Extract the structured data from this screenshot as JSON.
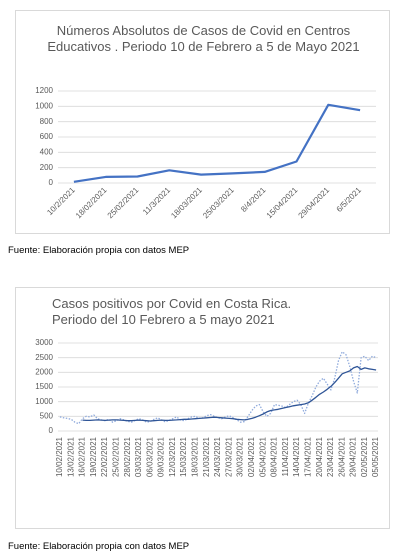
{
  "chart_data": [
    {
      "type": "line",
      "title": "Números Absolutos de Casos de Covid en Centros Educativos . Periodo 10 de Febrero a 5 de Mayo 2021",
      "categories": [
        "10/2/2021",
        "18/02/2021",
        "25/02/2021",
        "11/3/2021",
        "18/03/2021",
        "25/03/2021",
        "8/4/2021",
        "15/04/2021",
        "29/04/2021",
        "6/5/2021"
      ],
      "series": [
        {
          "color": "#4472c4",
          "values": [
            15,
            80,
            85,
            165,
            110,
            125,
            145,
            280,
            1020,
            950
          ]
        }
      ],
      "ylim": [
        0,
        1200
      ],
      "yticks": [
        0,
        200,
        400,
        600,
        800,
        1000,
        1200
      ],
      "grid": true
    },
    {
      "type": "line",
      "title": "Casos positivos por Covid en Costa Rica. Periodo del  10 Febrero a 5 mayo 2021",
      "categories": [
        "10/02/2021",
        null,
        null,
        "13/02/2021",
        null,
        null,
        "16/02/2021",
        null,
        null,
        "19/02/2021",
        null,
        null,
        "22/02/2021",
        null,
        null,
        "25/02/2021",
        null,
        null,
        "28/02/2021",
        null,
        null,
        "03/03/2021",
        null,
        null,
        "06/03/2021",
        null,
        null,
        "09/03/2021",
        null,
        null,
        "12/03/2021",
        null,
        null,
        "15/03/2021",
        null,
        null,
        "18/03/2021",
        null,
        null,
        "21/03/2021",
        null,
        null,
        "24/03/2021",
        null,
        null,
        "27/03/2021",
        null,
        null,
        "30/03/2021",
        null,
        null,
        "02/04/2021",
        null,
        null,
        "05/04/2021",
        null,
        null,
        "08/04/2021",
        null,
        null,
        "11/04/2021",
        null,
        null,
        "14/04/2021",
        null,
        null,
        "17/04/2021",
        null,
        null,
        "20/04/2021",
        null,
        null,
        "23/04/2021",
        null,
        null,
        "26/04/2021",
        null,
        null,
        "29/04/2021",
        null,
        null,
        "02/05/2021",
        null,
        null,
        "05/05/2021"
      ],
      "series": [
        {
          "color": "#8faadc",
          "dash": true,
          "values": [
            480,
            450,
            430,
            400,
            300,
            250,
            420,
            500,
            480,
            550,
            420,
            380,
            350,
            400,
            300,
            350,
            420,
            380,
            330,
            300,
            360,
            420,
            380,
            300,
            320,
            400,
            450,
            380,
            310,
            360,
            420,
            480,
            380,
            350,
            420,
            480,
            500,
            430,
            450,
            520,
            560,
            500,
            450,
            420,
            480,
            520,
            450,
            380,
            300,
            320,
            500,
            700,
            850,
            900,
            650,
            500,
            600,
            900,
            880,
            850,
            800,
            900,
            1000,
            1050,
            900,
            600,
            950,
            1200,
            1500,
            1700,
            1800,
            1600,
            1400,
            1800,
            2400,
            2700,
            2600,
            2200,
            1700,
            1300,
            2500,
            2550,
            2400,
            2550,
            2500
          ]
        },
        {
          "color": "#2f5597",
          "dash": false,
          "values": [
            null,
            null,
            null,
            null,
            null,
            null,
            370,
            360,
            360,
            370,
            380,
            370,
            360,
            370,
            380,
            380,
            370,
            360,
            350,
            350,
            360,
            370,
            360,
            350,
            340,
            350,
            360,
            370,
            360,
            360,
            370,
            380,
            390,
            400,
            400,
            410,
            420,
            430,
            440,
            450,
            460,
            470,
            460,
            450,
            440,
            430,
            420,
            400,
            390,
            380,
            400,
            430,
            470,
            520,
            580,
            650,
            700,
            720,
            740,
            770,
            800,
            830,
            860,
            880,
            900,
            920,
            960,
            1050,
            1150,
            1250,
            1330,
            1420,
            1520,
            1650,
            1800,
            1950,
            2000,
            2050,
            2150,
            2200,
            2100,
            2150,
            2120,
            2100,
            2080
          ]
        }
      ],
      "ylim": [
        0,
        3000
      ],
      "yticks": [
        0,
        500,
        1000,
        1500,
        2000,
        2500,
        3000
      ],
      "grid": true
    }
  ],
  "captions": [
    "Fuente: Elaboración propia con datos MEP",
    "Fuente: Elaboración propia con datos MEP"
  ]
}
